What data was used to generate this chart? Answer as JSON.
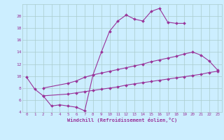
{
  "xlabel": "Windchill (Refroidissement éolien,°C)",
  "background_color": "#cceeff",
  "grid_color": "#aacccc",
  "line_color": "#993399",
  "ylim": [
    4,
    22
  ],
  "xlim": [
    -0.5,
    23.5
  ],
  "yticks": [
    4,
    6,
    8,
    10,
    12,
    14,
    16,
    18,
    20
  ],
  "xticks": [
    0,
    1,
    2,
    3,
    4,
    5,
    6,
    7,
    8,
    9,
    10,
    11,
    12,
    13,
    14,
    15,
    16,
    17,
    18,
    19,
    20,
    21,
    22,
    23
  ],
  "line1_x": [
    0,
    1,
    2,
    3,
    4,
    5,
    6,
    7,
    8,
    9,
    10,
    11,
    12,
    13,
    14,
    15,
    16,
    17,
    18,
    19
  ],
  "line1_y": [
    9.8,
    7.8,
    6.7,
    5.0,
    5.2,
    5.0,
    4.8,
    4.2,
    10.2,
    14.0,
    17.5,
    19.2,
    20.2,
    19.5,
    19.2,
    20.8,
    21.3,
    19.0,
    18.8,
    18.8
  ],
  "line2_x": [
    2,
    5,
    6,
    7,
    8,
    9,
    10,
    11,
    12,
    13,
    14,
    15,
    16,
    17,
    18,
    19,
    20,
    21,
    22,
    23
  ],
  "line2_y": [
    8.0,
    8.8,
    9.2,
    9.8,
    10.2,
    10.5,
    10.8,
    11.1,
    11.4,
    11.7,
    12.0,
    12.4,
    12.7,
    13.0,
    13.3,
    13.7,
    14.0,
    13.5,
    12.5,
    11.0
  ],
  "line3_x": [
    2,
    5,
    6,
    7,
    8,
    9,
    10,
    11,
    12,
    13,
    14,
    15,
    16,
    17,
    18,
    19,
    20,
    21,
    22,
    23
  ],
  "line3_y": [
    6.7,
    7.0,
    7.2,
    7.4,
    7.6,
    7.8,
    8.0,
    8.2,
    8.5,
    8.7,
    8.9,
    9.1,
    9.3,
    9.5,
    9.7,
    9.9,
    10.1,
    10.3,
    10.6,
    10.8
  ]
}
